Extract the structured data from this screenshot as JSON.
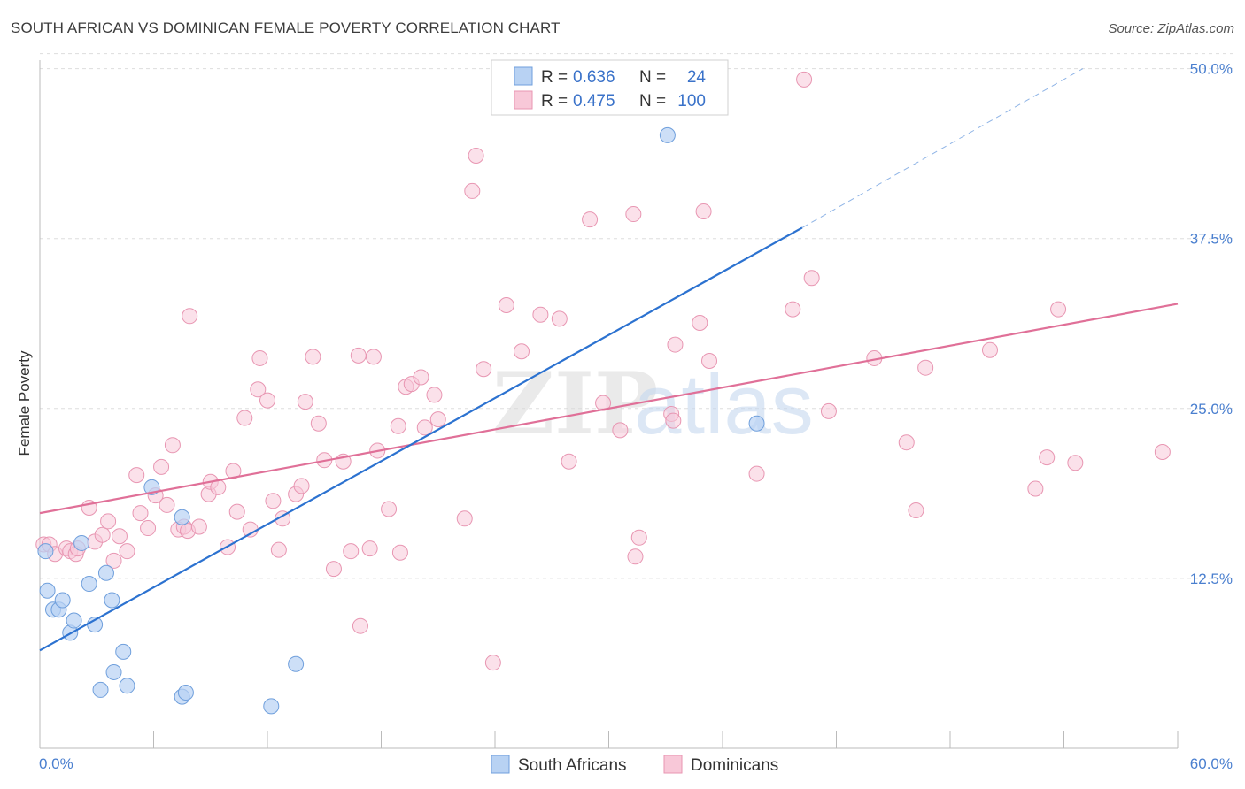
{
  "title": "SOUTH AFRICAN VS DOMINICAN FEMALE POVERTY CORRELATION CHART",
  "source": "Source: ZipAtlas.com",
  "watermark": "ZIPatlas",
  "colors": {
    "blue_fill": "#b8d2f3",
    "blue_stroke": "#6f9fdc",
    "blue_line": "#2c72d0",
    "pink_fill": "#f8c8d8",
    "pink_stroke": "#e896b2",
    "pink_line": "#e07098",
    "tick_text": "#4a7fcf",
    "grid": "#dddddd"
  },
  "legend": {
    "rows": [
      {
        "r_label": "R =",
        "r_value": "0.636",
        "n_label": "N =",
        "n_value": "24"
      },
      {
        "r_label": "R =",
        "r_value": "0.475",
        "n_label": "N =",
        "n_value": "100"
      }
    ]
  },
  "bottom_legend": [
    "South Africans",
    "Dominicans"
  ],
  "chart_data": {
    "type": "scatter",
    "ylabel": "Female Poverty",
    "xlim": [
      0,
      60
    ],
    "ylim": [
      0,
      52
    ],
    "x_tick_labels": [
      "0.0%",
      "60.0%"
    ],
    "y_ticks": [
      12.5,
      25.0,
      37.5,
      50.0
    ],
    "y_tick_labels": [
      "12.5%",
      "25.0%",
      "37.5%",
      "50.0%"
    ],
    "grid": true,
    "series": [
      {
        "name": "South Africans",
        "R": 0.636,
        "N": 24,
        "trend": {
          "x0": 0,
          "y0": 7.2,
          "x1": 40.2,
          "y1": 38.3,
          "dash_to_x": 55,
          "dash_to_y": 50
        },
        "points": [
          [
            0.3,
            14.5
          ],
          [
            0.4,
            11.6
          ],
          [
            0.7,
            10.2
          ],
          [
            1.0,
            10.2
          ],
          [
            1.2,
            10.9
          ],
          [
            1.6,
            8.5
          ],
          [
            1.8,
            9.4
          ],
          [
            2.2,
            15.1
          ],
          [
            2.6,
            12.1
          ],
          [
            2.9,
            9.1
          ],
          [
            3.2,
            4.3
          ],
          [
            3.5,
            12.9
          ],
          [
            3.8,
            10.9
          ],
          [
            3.9,
            5.6
          ],
          [
            4.4,
            7.1
          ],
          [
            4.6,
            4.6
          ],
          [
            5.9,
            19.2
          ],
          [
            7.5,
            17.0
          ],
          [
            7.5,
            3.8
          ],
          [
            7.7,
            4.1
          ],
          [
            12.2,
            3.1
          ],
          [
            13.5,
            6.2
          ],
          [
            33.1,
            45.1
          ],
          [
            37.8,
            23.9
          ]
        ]
      },
      {
        "name": "Dominicans",
        "R": 0.475,
        "N": 100,
        "trend": {
          "x0": 0,
          "y0": 17.3,
          "x1": 60,
          "y1": 32.7
        },
        "points": [
          [
            0.2,
            15.0
          ],
          [
            0.5,
            15.0
          ],
          [
            0.8,
            14.3
          ],
          [
            1.4,
            14.7
          ],
          [
            1.6,
            14.5
          ],
          [
            1.9,
            14.3
          ],
          [
            2.0,
            14.7
          ],
          [
            2.6,
            17.7
          ],
          [
            2.9,
            15.2
          ],
          [
            3.3,
            15.7
          ],
          [
            3.6,
            16.7
          ],
          [
            3.9,
            13.8
          ],
          [
            4.2,
            15.6
          ],
          [
            4.6,
            14.5
          ],
          [
            5.1,
            20.1
          ],
          [
            5.3,
            17.3
          ],
          [
            5.7,
            16.2
          ],
          [
            6.1,
            18.6
          ],
          [
            6.4,
            20.7
          ],
          [
            6.7,
            17.9
          ],
          [
            7.0,
            22.3
          ],
          [
            7.3,
            16.1
          ],
          [
            7.6,
            16.3
          ],
          [
            7.8,
            16.0
          ],
          [
            7.9,
            31.8
          ],
          [
            8.4,
            16.3
          ],
          [
            8.9,
            18.7
          ],
          [
            9.0,
            19.6
          ],
          [
            9.4,
            19.2
          ],
          [
            9.9,
            14.8
          ],
          [
            10.2,
            20.4
          ],
          [
            10.4,
            17.4
          ],
          [
            10.8,
            24.3
          ],
          [
            11.1,
            16.1
          ],
          [
            11.5,
            26.4
          ],
          [
            11.6,
            28.7
          ],
          [
            12.0,
            25.6
          ],
          [
            12.3,
            18.2
          ],
          [
            12.6,
            14.6
          ],
          [
            12.8,
            16.9
          ],
          [
            13.5,
            18.7
          ],
          [
            13.8,
            19.3
          ],
          [
            14.0,
            25.5
          ],
          [
            14.4,
            28.8
          ],
          [
            14.7,
            23.9
          ],
          [
            15.0,
            21.2
          ],
          [
            15.5,
            13.2
          ],
          [
            16.0,
            21.1
          ],
          [
            16.4,
            14.5
          ],
          [
            16.8,
            28.9
          ],
          [
            16.9,
            9.0
          ],
          [
            17.4,
            14.7
          ],
          [
            17.6,
            28.8
          ],
          [
            17.8,
            21.9
          ],
          [
            18.4,
            17.6
          ],
          [
            18.9,
            23.7
          ],
          [
            19.0,
            14.4
          ],
          [
            19.3,
            26.6
          ],
          [
            19.6,
            26.8
          ],
          [
            20.1,
            27.3
          ],
          [
            20.3,
            23.6
          ],
          [
            20.8,
            26.0
          ],
          [
            21.0,
            24.2
          ],
          [
            22.4,
            16.9
          ],
          [
            22.8,
            41.0
          ],
          [
            23.0,
            43.6
          ],
          [
            23.4,
            27.9
          ],
          [
            23.9,
            6.3
          ],
          [
            24.6,
            32.6
          ],
          [
            25.4,
            29.2
          ],
          [
            26.4,
            31.9
          ],
          [
            27.4,
            31.6
          ],
          [
            27.9,
            21.1
          ],
          [
            29.0,
            38.9
          ],
          [
            29.7,
            25.4
          ],
          [
            30.6,
            23.4
          ],
          [
            31.3,
            39.3
          ],
          [
            31.4,
            14.1
          ],
          [
            31.6,
            15.5
          ],
          [
            33.3,
            24.6
          ],
          [
            33.4,
            24.1
          ],
          [
            33.5,
            29.7
          ],
          [
            34.8,
            31.3
          ],
          [
            35.0,
            39.5
          ],
          [
            35.3,
            28.5
          ],
          [
            37.8,
            20.2
          ],
          [
            39.7,
            32.3
          ],
          [
            40.3,
            49.2
          ],
          [
            40.7,
            34.6
          ],
          [
            41.6,
            24.8
          ],
          [
            44.0,
            28.7
          ],
          [
            45.7,
            22.5
          ],
          [
            46.2,
            17.5
          ],
          [
            46.7,
            28.0
          ],
          [
            50.1,
            29.3
          ],
          [
            52.5,
            19.1
          ],
          [
            53.1,
            21.4
          ],
          [
            53.7,
            32.3
          ],
          [
            54.6,
            21.0
          ],
          [
            59.2,
            21.8
          ]
        ]
      }
    ]
  }
}
